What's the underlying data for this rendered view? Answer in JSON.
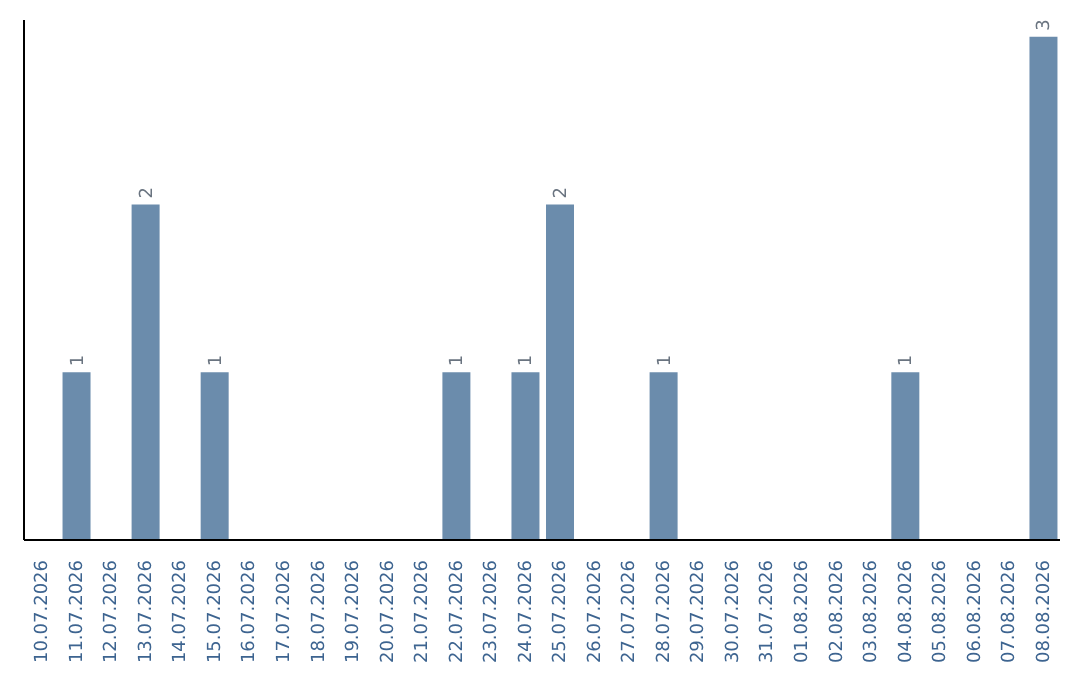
{
  "chart_data": {
    "type": "bar",
    "categories": [
      "10.07.2026",
      "11.07.2026",
      "12.07.2026",
      "13.07.2026",
      "14.07.2026",
      "15.07.2026",
      "16.07.2026",
      "17.07.2026",
      "18.07.2026",
      "19.07.2026",
      "20.07.2026",
      "21.07.2026",
      "22.07.2026",
      "23.07.2026",
      "24.07.2026",
      "25.07.2026",
      "26.07.2026",
      "27.07.2026",
      "28.07.2026",
      "29.07.2026",
      "30.07.2026",
      "31.07.2026",
      "01.08.2026",
      "02.08.2026",
      "03.08.2026",
      "04.08.2026",
      "05.08.2026",
      "06.08.2026",
      "07.08.2026",
      "08.08.2026"
    ],
    "values": [
      0,
      1,
      0,
      2,
      0,
      1,
      0,
      0,
      0,
      0,
      0,
      0,
      1,
      0,
      1,
      2,
      0,
      0,
      1,
      0,
      0,
      0,
      0,
      0,
      0,
      1,
      0,
      0,
      0,
      3
    ],
    "value_labels": [
      null,
      "1",
      null,
      "2",
      null,
      "1",
      null,
      null,
      null,
      null,
      null,
      null,
      "1",
      null,
      "1",
      "2",
      null,
      null,
      "1",
      null,
      null,
      null,
      null,
      null,
      null,
      "1",
      null,
      null,
      null,
      "3"
    ],
    "color": "#6b8cac",
    "ylim": [
      0,
      3.1
    ],
    "tick_labels": "x"
  }
}
